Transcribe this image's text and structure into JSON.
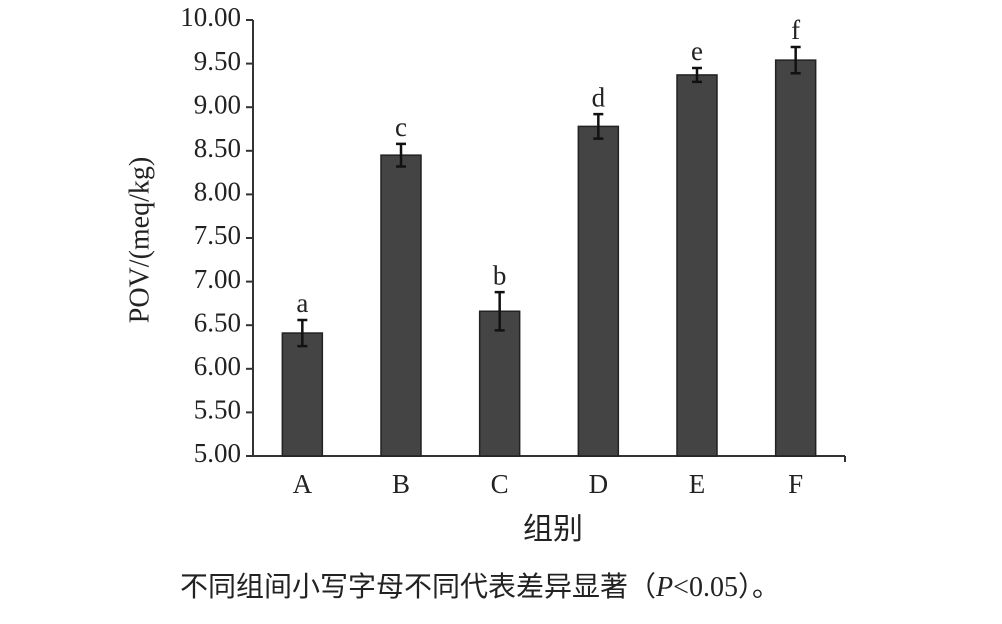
{
  "chart_data": {
    "type": "bar",
    "y_label": "POV/(meq/kg)",
    "x_label": "组别",
    "caption": [
      "不同组间小写字母不同代表差异显著（",
      "P",
      "<0.05）。"
    ],
    "categories": [
      "A",
      "B",
      "C",
      "D",
      "E",
      "F"
    ],
    "values": [
      6.41,
      8.45,
      6.66,
      8.78,
      9.37,
      9.54
    ],
    "errors": [
      0.15,
      0.13,
      0.22,
      0.14,
      0.08,
      0.15
    ],
    "annotations": [
      "a",
      "c",
      "b",
      "d",
      "e",
      "f"
    ],
    "color": "#444444",
    "ylim": [
      5,
      10
    ],
    "yticks": [
      {
        "value": 5,
        "label": "5.00"
      },
      {
        "value": 5.5,
        "label": "5.50"
      },
      {
        "value": 6,
        "label": "6.00"
      },
      {
        "value": 6.5,
        "label": "6.50"
      },
      {
        "value": 7,
        "label": "7.00"
      },
      {
        "value": 7.5,
        "label": "7.50"
      },
      {
        "value": 8,
        "label": "8.00"
      },
      {
        "value": 8.5,
        "label": "8.50"
      },
      {
        "value": 9,
        "label": "9.00"
      },
      {
        "value": 9.5,
        "label": "9.50"
      },
      {
        "value": 10,
        "label": "10.00"
      }
    ],
    "grid": false
  }
}
